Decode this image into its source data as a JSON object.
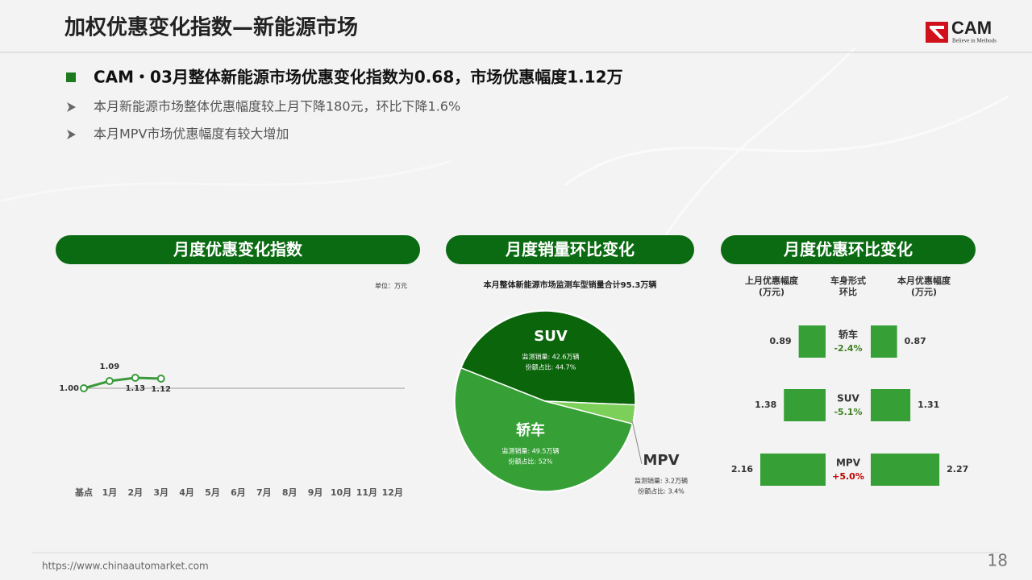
{
  "header": {
    "title": "加权优惠变化指数—新能源市场",
    "logo_text": "CAM",
    "logo_tagline": "Believe in Methods"
  },
  "headline": "CAM・03月整体新能源市场优惠变化指数为0.68，市场优惠幅度1.12万",
  "bullets": [
    "本月新能源市场整体优惠幅度较上月下降180元，环比下降1.6%",
    "本月MPV市场优惠幅度有较大增加"
  ],
  "footer": {
    "url": "https://www.chinaautomarket.com",
    "page": "18"
  },
  "chart_data": [
    {
      "type": "line",
      "title": "月度优惠变化指数",
      "unit_label": "单位：万元",
      "categories": [
        "基点",
        "1月",
        "2月",
        "3月",
        "4月",
        "5月",
        "6月",
        "7月",
        "8月",
        "9月",
        "10月",
        "11月",
        "12月"
      ],
      "values": [
        1,
        1.09,
        1.13,
        1.12,
        null,
        null,
        null,
        null,
        null,
        null,
        null,
        null,
        null
      ],
      "value_labels": [
        "1.00",
        "1.09",
        "1.13",
        "1.12",
        null,
        null,
        null,
        null,
        null,
        null,
        null,
        null,
        null
      ],
      "ylim": [
        0,
        3
      ],
      "color": "#3a9a3a"
    },
    {
      "type": "pie",
      "title": "月度销量环比变化",
      "subtitle": "本月整体新能源市场监测车型销量合计95.3万辆",
      "categories": [
        "SUV",
        "MPV",
        "轿车"
      ],
      "values": [
        44.7,
        3.4,
        52
      ],
      "value_labels": [
        "份额占比: 44.7%",
        "份额占比: 3.4%",
        "份额占比: 52%"
      ],
      "sales": [
        42.6,
        3.2,
        49.5
      ],
      "sales_labels": [
        "监测销量: 42.6万辆",
        "监测销量: 3.2万辆",
        "监测销量: 49.5万辆"
      ],
      "colors": [
        "#0b650b",
        "#7ccf58",
        "#36a036"
      ]
    },
    {
      "type": "bar",
      "title": "月度优惠环比变化",
      "categories": [
        "轿车",
        "SUV",
        "MPV"
      ],
      "series": [
        {
          "name": "上月优惠幅度",
          "unit": "(万元)",
          "color": "#36a036",
          "values": [
            0.89,
            1.38,
            2.16
          ]
        },
        {
          "name": "本月优惠幅度",
          "unit": "(万元)",
          "color": "#36a036",
          "values": [
            0.87,
            1.31,
            2.27
          ]
        }
      ],
      "change_header": [
        "车身形式",
        "环比"
      ],
      "change": [
        -2.4,
        -5.1,
        5
      ],
      "change_labels": [
        "-2.4%",
        "-5.1%",
        "+5.0%"
      ],
      "negative_color": "#3d7f1f",
      "positive_color": "#c00000",
      "xlim": [
        0,
        2.4
      ]
    }
  ]
}
